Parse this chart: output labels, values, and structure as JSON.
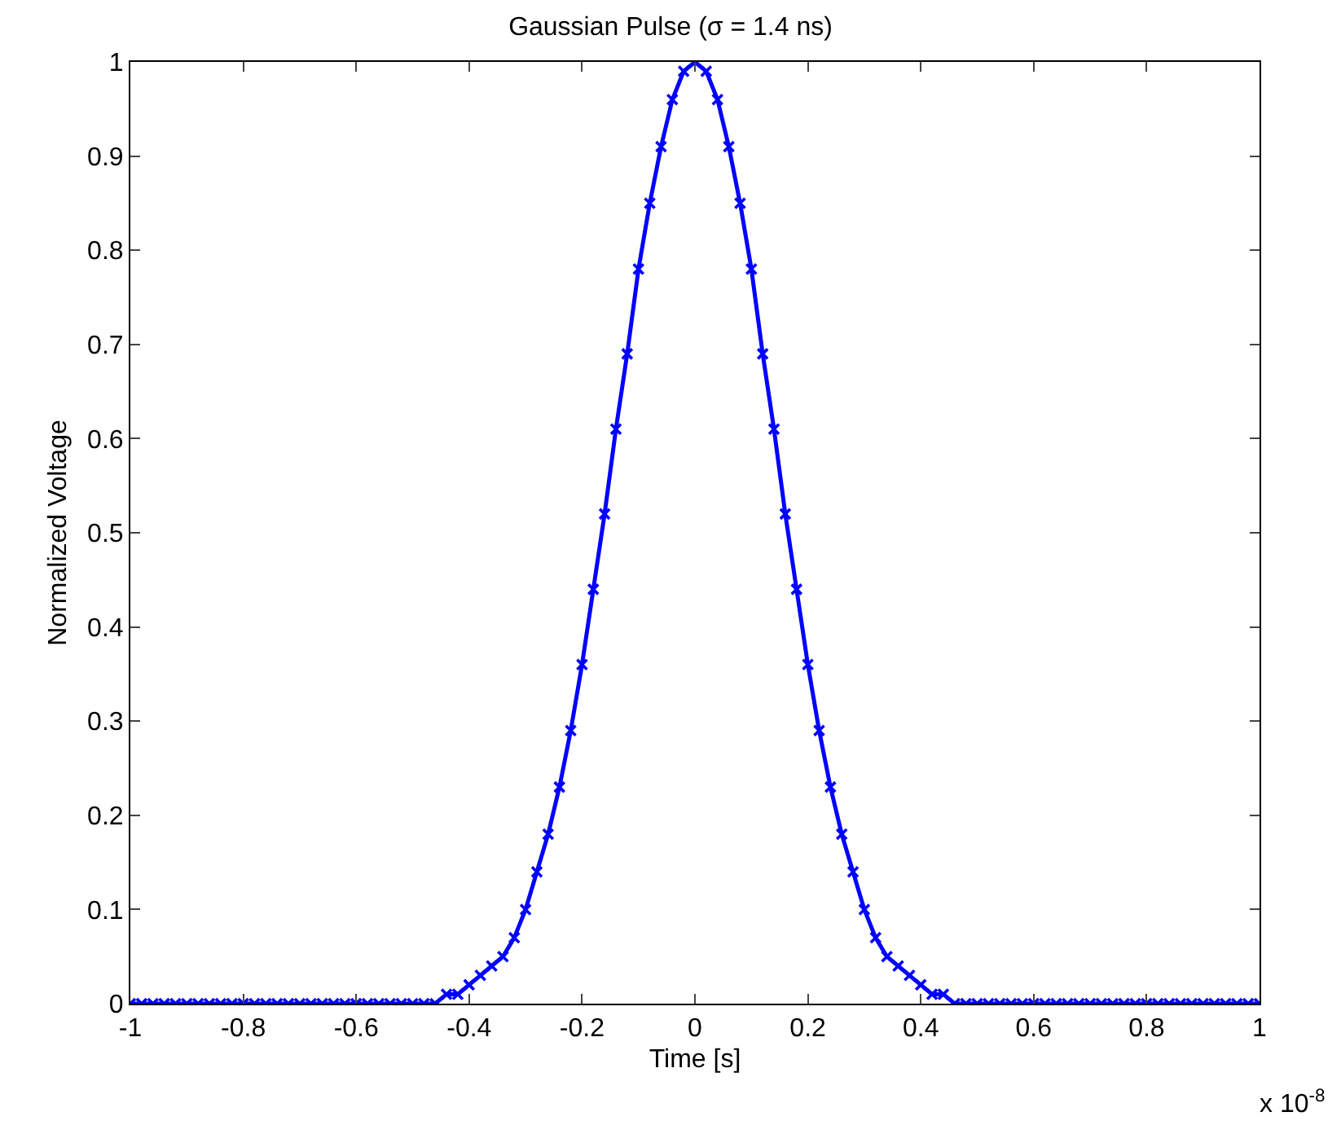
{
  "chart_data": {
    "type": "line",
    "title": "Gaussian Pulse (σ = 1.4 ns)",
    "xlabel": "Time [s]",
    "ylabel": "Normalized Voltage",
    "x": [
      -1,
      -0.98,
      -0.96,
      -0.94,
      -0.92,
      -0.9,
      -0.88,
      -0.86,
      -0.84,
      -0.82,
      -0.8,
      -0.78,
      -0.76,
      -0.74,
      -0.72,
      -0.7,
      -0.68,
      -0.66,
      -0.64,
      -0.62,
      -0.6,
      -0.58,
      -0.56,
      -0.54,
      -0.52,
      -0.5,
      -0.48,
      -0.46,
      -0.44,
      -0.42,
      -0.4,
      -0.38,
      -0.36,
      -0.34,
      -0.32,
      -0.3,
      -0.28,
      -0.26,
      -0.24,
      -0.22,
      -0.2,
      -0.18,
      -0.16,
      -0.14,
      -0.12,
      -0.1,
      -0.08,
      -0.06,
      -0.04,
      -0.02,
      0,
      0.02,
      0.04,
      0.06,
      0.08,
      0.1,
      0.12,
      0.14,
      0.16,
      0.18,
      0.2,
      0.22,
      0.24,
      0.26,
      0.28,
      0.3,
      0.32,
      0.34,
      0.36,
      0.38,
      0.4,
      0.42,
      0.44,
      0.46,
      0.48,
      0.5,
      0.52,
      0.54,
      0.56,
      0.58,
      0.6,
      0.62,
      0.64,
      0.66,
      0.68,
      0.7,
      0.72,
      0.74,
      0.76,
      0.78,
      0.8,
      0.82,
      0.84,
      0.86,
      0.88,
      0.9,
      0.92,
      0.94,
      0.96,
      0.98,
      1
    ],
    "series": [
      {
        "color": "#0000ff",
        "values": [
          0,
          0,
          0,
          0,
          0,
          0,
          0,
          0,
          0,
          0,
          0,
          0,
          0,
          0,
          0,
          0,
          0,
          0,
          0,
          0,
          0,
          0,
          0,
          0,
          0,
          0,
          0,
          0,
          0.01,
          0.01,
          0.02,
          0.03,
          0.04,
          0.05,
          0.07,
          0.1,
          0.14,
          0.18,
          0.23,
          0.29,
          0.36,
          0.44,
          0.52,
          0.61,
          0.69,
          0.78,
          0.85,
          0.91,
          0.96,
          0.99,
          1,
          0.99,
          0.96,
          0.91,
          0.85,
          0.78,
          0.69,
          0.61,
          0.52,
          0.44,
          0.36,
          0.29,
          0.23,
          0.18,
          0.14,
          0.1,
          0.07,
          0.05,
          0.04,
          0.03,
          0.02,
          0.01,
          0.01,
          0,
          0,
          0,
          0,
          0,
          0,
          0,
          0,
          0,
          0,
          0,
          0,
          0,
          0,
          0,
          0,
          0,
          0,
          0,
          0,
          0,
          0,
          0,
          0,
          0,
          0,
          0,
          0
        ]
      }
    ],
    "xlim": [
      -1,
      1
    ],
    "xticks": [
      -1,
      -0.8,
      -0.6,
      -0.4,
      -0.2,
      0,
      0.2,
      0.4,
      0.6,
      0.8,
      1
    ],
    "ylim": [
      0,
      1
    ],
    "yticks": [
      0,
      0.1,
      0.2,
      0.3,
      0.4,
      0.5,
      0.6,
      0.7,
      0.8,
      0.9,
      1
    ],
    "annotations": [
      "x 10$^{-8}$"
    ],
    "grid": false,
    "marker": "cross",
    "line_style": "solid"
  }
}
